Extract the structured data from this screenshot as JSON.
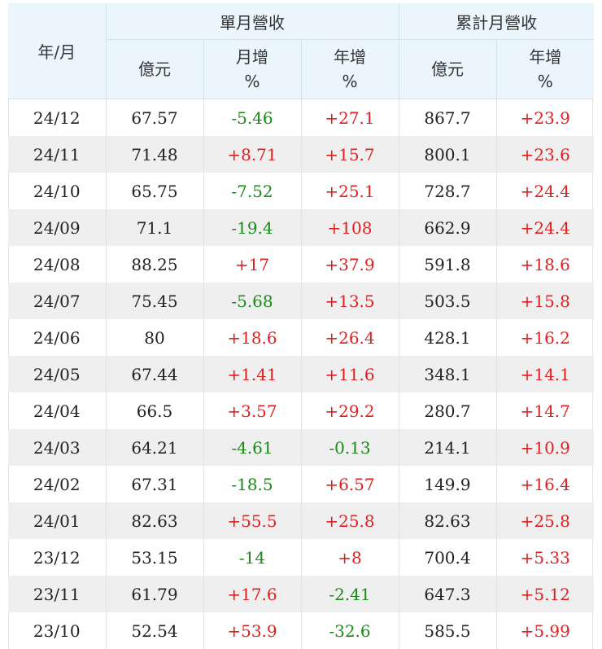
{
  "header": {
    "year_month": "年/月",
    "group_monthly": "單月營收",
    "group_cumulative": "累計月營收",
    "col_billion": "億元",
    "col_mom_1": "月增",
    "col_mom_2": "%",
    "col_yoy_1": "年增",
    "col_yoy_2": "%",
    "col_cum_billion": "億元",
    "col_cum_yoy_1": "年增",
    "col_cum_yoy_2": "%"
  },
  "colors": {
    "positive": "#e02020",
    "negative": "#1a8a1a",
    "header_bg": "#eaf5fc",
    "stripe": "#efefef"
  },
  "rows": [
    {
      "ym": "24/12",
      "rev": "67.57",
      "mom": "-5.46",
      "yoy": "+27.1",
      "cum": "867.7",
      "cum_yoy": "+23.9"
    },
    {
      "ym": "24/11",
      "rev": "71.48",
      "mom": "+8.71",
      "yoy": "+15.7",
      "cum": "800.1",
      "cum_yoy": "+23.6"
    },
    {
      "ym": "24/10",
      "rev": "65.75",
      "mom": "-7.52",
      "yoy": "+25.1",
      "cum": "728.7",
      "cum_yoy": "+24.4"
    },
    {
      "ym": "24/09",
      "rev": "71.1",
      "mom": "-19.4",
      "yoy": "+108",
      "cum": "662.9",
      "cum_yoy": "+24.4"
    },
    {
      "ym": "24/08",
      "rev": "88.25",
      "mom": "+17",
      "yoy": "+37.9",
      "cum": "591.8",
      "cum_yoy": "+18.6"
    },
    {
      "ym": "24/07",
      "rev": "75.45",
      "mom": "-5.68",
      "yoy": "+13.5",
      "cum": "503.5",
      "cum_yoy": "+15.8"
    },
    {
      "ym": "24/06",
      "rev": "80",
      "mom": "+18.6",
      "yoy": "+26.4",
      "cum": "428.1",
      "cum_yoy": "+16.2"
    },
    {
      "ym": "24/05",
      "rev": "67.44",
      "mom": "+1.41",
      "yoy": "+11.6",
      "cum": "348.1",
      "cum_yoy": "+14.1"
    },
    {
      "ym": "24/04",
      "rev": "66.5",
      "mom": "+3.57",
      "yoy": "+29.2",
      "cum": "280.7",
      "cum_yoy": "+14.7"
    },
    {
      "ym": "24/03",
      "rev": "64.21",
      "mom": "-4.61",
      "yoy": "-0.13",
      "cum": "214.1",
      "cum_yoy": "+10.9"
    },
    {
      "ym": "24/02",
      "rev": "67.31",
      "mom": "-18.5",
      "yoy": "+6.57",
      "cum": "149.9",
      "cum_yoy": "+16.4"
    },
    {
      "ym": "24/01",
      "rev": "82.63",
      "mom": "+55.5",
      "yoy": "+25.8",
      "cum": "82.63",
      "cum_yoy": "+25.8"
    },
    {
      "ym": "23/12",
      "rev": "53.15",
      "mom": "-14",
      "yoy": "+8",
      "cum": "700.4",
      "cum_yoy": "+5.33"
    },
    {
      "ym": "23/11",
      "rev": "61.79",
      "mom": "+17.6",
      "yoy": "-2.41",
      "cum": "647.3",
      "cum_yoy": "+5.12"
    },
    {
      "ym": "23/10",
      "rev": "52.54",
      "mom": "+53.9",
      "yoy": "-32.6",
      "cum": "585.5",
      "cum_yoy": "+5.99"
    }
  ]
}
